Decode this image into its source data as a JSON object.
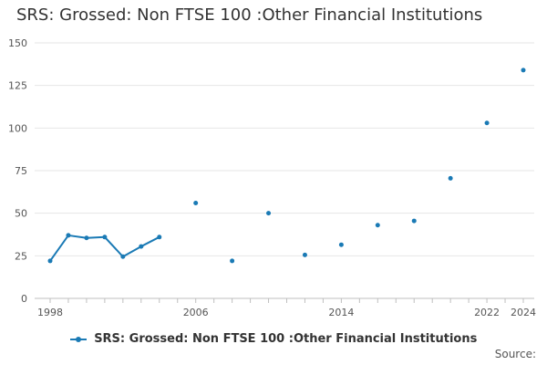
{
  "chart_data": {
    "type": "line",
    "title": "SRS: Grossed: Non FTSE 100 :Other Financial Institutions",
    "xlabel": "",
    "ylabel": "",
    "ylim": [
      0,
      150
    ],
    "xlim": [
      1998,
      2024
    ],
    "yticks": [
      0,
      25,
      50,
      75,
      100,
      125,
      150
    ],
    "xticks": [
      "1998",
      "2006",
      "2014",
      "2022",
      "2024"
    ],
    "grid": true,
    "legend_position": "bottom",
    "series": [
      {
        "name": "SRS: Grossed: Non FTSE 100 :Other Financial Institutions",
        "color": "#1a7ab5",
        "points": [
          {
            "x": 1998,
            "y": 22
          },
          {
            "x": 1999,
            "y": 37
          },
          {
            "x": 2000,
            "y": 35.5
          },
          {
            "x": 2001,
            "y": 36
          },
          {
            "x": 2002,
            "y": 24.5
          },
          {
            "x": 2003,
            "y": 30.5
          },
          {
            "x": 2004,
            "y": 36
          },
          {
            "x": 2006,
            "y": 56
          },
          {
            "x": 2008,
            "y": 22
          },
          {
            "x": 2010,
            "y": 50
          },
          {
            "x": 2012,
            "y": 25.5
          },
          {
            "x": 2014,
            "y": 31.5
          },
          {
            "x": 2016,
            "y": 43
          },
          {
            "x": 2018,
            "y": 45.5
          },
          {
            "x": 2020,
            "y": 70.5
          },
          {
            "x": 2022,
            "y": 103
          },
          {
            "x": 2024,
            "y": 134
          }
        ]
      }
    ]
  },
  "footer": {
    "source_label": "Source:"
  }
}
